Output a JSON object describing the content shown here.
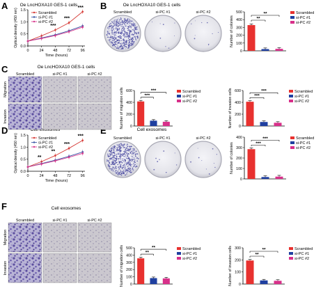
{
  "figure": {
    "colors": {
      "scrambled": "#e8312f",
      "sipc1": "#1f3fa0",
      "sipc2": "#d8308a",
      "growth_scrambled": "#d63a36",
      "growth_sipc1": "#3a55a5",
      "growth_sipc2": "#d83a8e",
      "plate_stain": "#4a4aa0",
      "transwell_stain": "#6a5ab0"
    },
    "panels": {
      "A": {
        "letter": "A",
        "title": "Oe LncHOXA10 GES-1 cells",
        "legend": [
          "Scrambled",
          "si-PC #1",
          "si-PC #2"
        ],
        "chart_data": {
          "type": "line",
          "xlabel": "Time (hours)",
          "ylabel": "Optical density (450 nm)",
          "x": [
            0,
            24,
            48,
            72,
            96
          ],
          "xticks": [
            "0",
            "24",
            "48",
            "72",
            "96"
          ],
          "yticks": [
            "0.0",
            "0.5",
            "1.0",
            "1.5"
          ],
          "ylim": [
            0,
            1.5
          ],
          "series": [
            {
              "name": "Scrambled",
              "values": [
                0.2,
                0.42,
                0.66,
                0.96,
                1.42
              ]
            },
            {
              "name": "si-PC #1",
              "values": [
                0.2,
                0.33,
                0.46,
                0.63,
                0.83
              ]
            },
            {
              "name": "si-PC #2",
              "values": [
                0.2,
                0.31,
                0.43,
                0.59,
                0.78
              ]
            }
          ],
          "annotations": [
            "***",
            "***",
            "***"
          ]
        }
      },
      "B": {
        "letter": "B",
        "title": "Oe LncHOXA10 GES-1 cells",
        "plate_labels": [
          "Scrambled",
          "si-PC #1",
          "si-PC #2"
        ],
        "chart_data": {
          "type": "bar",
          "ylabel": "Number of colonies",
          "categories": [
            "Scrambled",
            "si-PC #1",
            "si-PC #2"
          ],
          "values": [
            330,
            22,
            25
          ],
          "ylim": [
            0,
            500
          ],
          "yticks": [
            "0",
            "100",
            "200",
            "300",
            "400",
            "500"
          ],
          "annotations": [
            "**",
            "**"
          ],
          "legend": [
            "Scrambled",
            "si-PC #1",
            "si-PC #2"
          ]
        }
      },
      "C": {
        "letter": "C",
        "title": "Oe LncHOXA10 GES-1 cells",
        "column_labels": [
          "Scrambled",
          "si-PC #1",
          "si-PC #2"
        ],
        "row_labels": [
          "Migration",
          "Invasion"
        ],
        "charts": [
          {
            "type": "bar",
            "ylabel": "Number of migration cells",
            "categories": [
              "Scrambled",
              "si-PC #1",
              "si-PC #2"
            ],
            "values": [
              415,
              90,
              72
            ],
            "ylim": [
              0,
              600
            ],
            "yticks": [
              "0",
              "200",
              "400",
              "600"
            ],
            "annotations": [
              "***",
              "***"
            ],
            "legend": [
              "Scrambled",
              "si-PC #1",
              "si-PC #2"
            ]
          },
          {
            "type": "bar",
            "ylabel": "Number of invasion cells",
            "categories": [
              "Scrambled",
              "si-PC #1",
              "si-PC #2"
            ],
            "values": [
              410,
              68,
              55
            ],
            "ylim": [
              0,
              600
            ],
            "yticks": [
              "0",
              "200",
              "400",
              "600"
            ],
            "annotations": [
              "***",
              "***"
            ],
            "legend": [
              "Scrambled",
              "si-PC #1",
              "si-PC #2"
            ]
          }
        ]
      },
      "D": {
        "letter": "D",
        "title": "Cell exosomes",
        "legend": [
          "Scrambled",
          "si-PC #1",
          "si-PC #2"
        ],
        "chart_data": {
          "type": "line",
          "xlabel": "Time (hours)",
          "ylabel": "Optical density (450 nm)",
          "x": [
            0,
            24,
            48,
            72,
            96
          ],
          "xticks": [
            "0",
            "24",
            "48",
            "72",
            "96"
          ],
          "yticks": [
            "0.0",
            "0.5",
            "1.0",
            "1.5"
          ],
          "ylim": [
            0,
            1.5
          ],
          "series": [
            {
              "name": "Scrambled",
              "values": [
                0.18,
                0.4,
                0.65,
                0.95,
                1.28
              ]
            },
            {
              "name": "si-PC #1",
              "values": [
                0.18,
                0.32,
                0.46,
                0.62,
                0.8
              ]
            },
            {
              "name": "si-PC #2",
              "values": [
                0.18,
                0.3,
                0.43,
                0.58,
                0.74
              ]
            }
          ],
          "annotations": [
            "**",
            "**",
            "***",
            "***"
          ]
        }
      },
      "E": {
        "letter": "E",
        "title": "Cell exosomes",
        "plate_labels": [
          "Scrambled",
          "si-PC #1",
          "si-PC #2"
        ],
        "chart_data": {
          "type": "bar",
          "ylabel": "Number of colonies",
          "categories": [
            "Scrambled",
            "si-PC #1",
            "si-PC #2"
          ],
          "values": [
            285,
            18,
            22
          ],
          "ylim": [
            0,
            400
          ],
          "yticks": [
            "0",
            "100",
            "200",
            "300",
            "400"
          ],
          "annotations": [
            "***",
            "***"
          ],
          "legend": [
            "Scrambled",
            "si-PC #1",
            "si-PC #2"
          ]
        }
      },
      "F": {
        "letter": "F",
        "title": "Cell exosomes",
        "column_labels": [
          "Scrambled",
          "si-PC #1",
          "si-PC #2"
        ],
        "row_labels": [
          "Migration",
          "Invasion"
        ],
        "charts": [
          {
            "type": "bar",
            "ylabel": "Number of migration cells",
            "categories": [
              "Scrambled",
              "si-PC #1",
              "si-PC #2"
            ],
            "values": [
              355,
              82,
              78
            ],
            "ylim": [
              0,
              500
            ],
            "yticks": [
              "0",
              "100",
              "200",
              "300",
              "400",
              "500"
            ],
            "annotations": [
              "**",
              "**"
            ],
            "legend": [
              "Scrambled",
              "si-PC #1",
              "si-PC #2"
            ]
          },
          {
            "type": "bar",
            "ylabel": "Number of invasion cells",
            "categories": [
              "Scrambled",
              "si-PC #1",
              "si-PC #2"
            ],
            "values": [
              195,
              30,
              27
            ],
            "ylim": [
              0,
              300
            ],
            "yticks": [
              "0",
              "100",
              "200",
              "300"
            ],
            "annotations": [
              "**",
              "**"
            ],
            "legend": [
              "Scrambled",
              "si-PC #1",
              "si-PC #2"
            ]
          }
        ]
      }
    }
  }
}
